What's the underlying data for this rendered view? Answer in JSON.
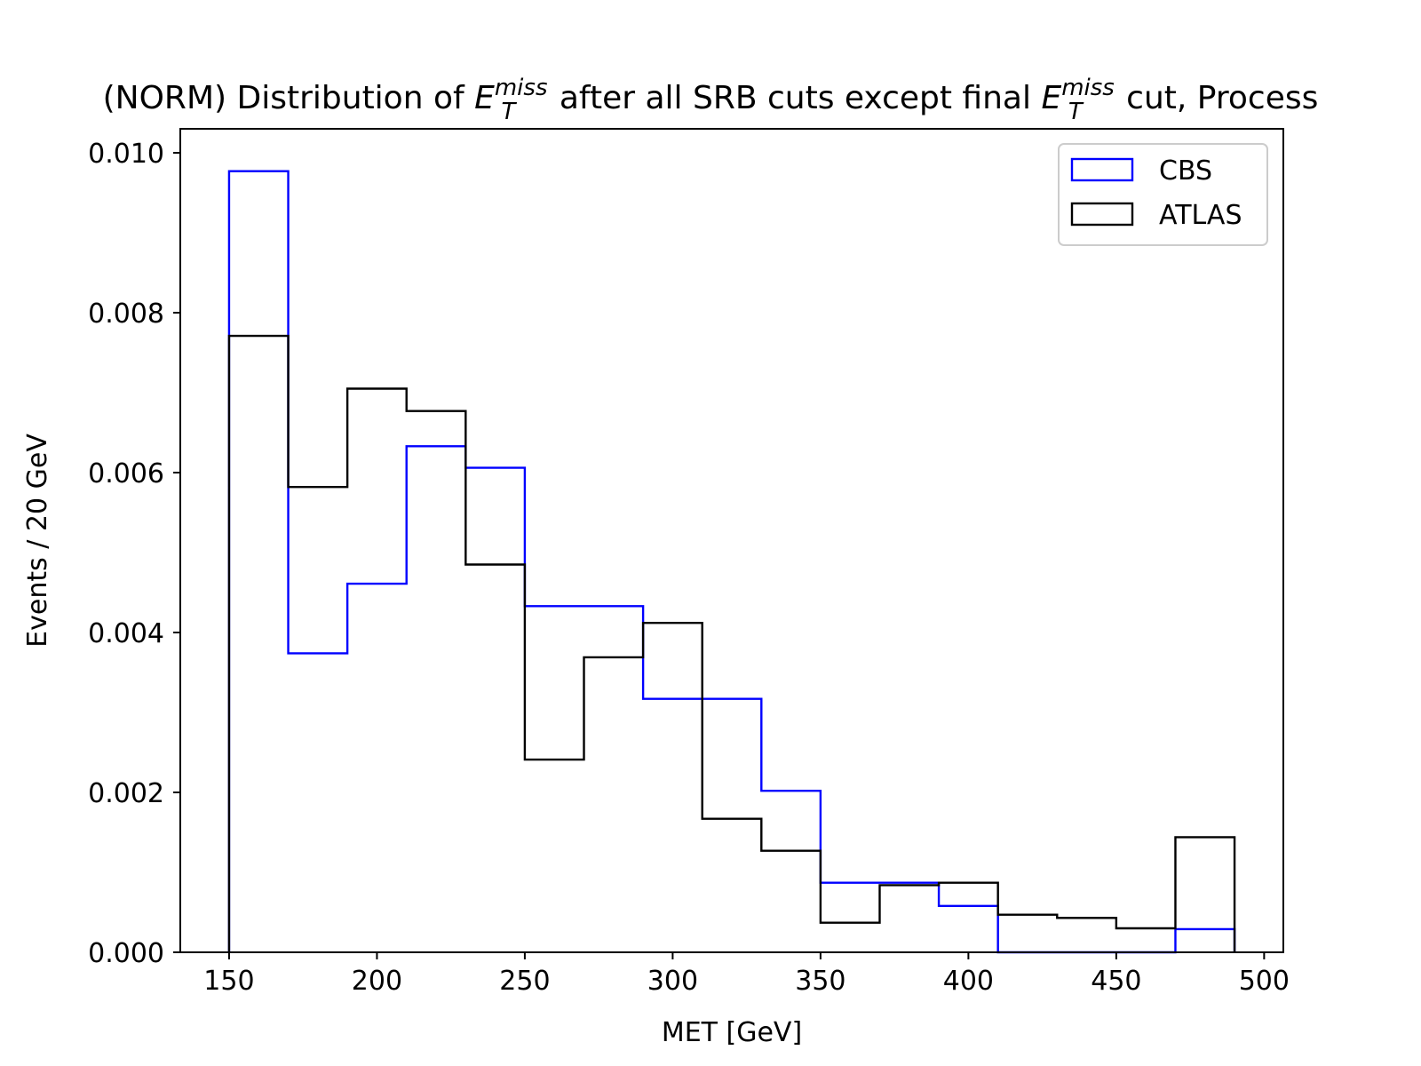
{
  "chart_data": {
    "type": "histogram",
    "title": {
      "prefix": "(NORM) Distribution of ",
      "symbol_base": "E",
      "symbol_sub": "T",
      "symbol_sup": "miss",
      "middle": " after all SRB cuts except final ",
      "suffix": " cut, Process"
    },
    "xlabel": "MET [GeV]",
    "ylabel": "Events / 20 GeV",
    "xlim": [
      133.5,
      506.5
    ],
    "ylim": [
      0,
      0.0103
    ],
    "xticks": [
      150,
      200,
      250,
      300,
      350,
      400,
      450,
      500
    ],
    "xtick_labels": [
      "150",
      "200",
      "250",
      "300",
      "350",
      "400",
      "450",
      "500"
    ],
    "yticks": [
      0,
      0.002,
      0.004,
      0.006,
      0.008,
      0.01
    ],
    "ytick_labels": [
      "0.000",
      "0.002",
      "0.004",
      "0.006",
      "0.008",
      "0.010"
    ],
    "bin_edges": [
      150,
      170,
      190,
      210,
      230,
      250,
      270,
      290,
      310,
      330,
      350,
      370,
      390,
      410,
      430,
      450,
      470,
      490
    ],
    "series": [
      {
        "name": "CBS",
        "color": "#0000ff",
        "values": [
          0.00977,
          0.00374,
          0.00461,
          0.00633,
          0.00606,
          0.00433,
          0.00433,
          0.00317,
          0.00317,
          0.00202,
          0.00087,
          0.00087,
          0.00058,
          0.0,
          0.0,
          0.0,
          0.00029
        ]
      },
      {
        "name": "ATLAS",
        "color": "#000000",
        "values": [
          0.00771,
          0.00582,
          0.00705,
          0.00677,
          0.00485,
          0.00241,
          0.00369,
          0.00412,
          0.00167,
          0.00127,
          0.00037,
          0.00084,
          0.00087,
          0.00047,
          0.00043,
          0.0003,
          0.00144
        ]
      }
    ],
    "legend_position": "upper-right",
    "grid": false
  }
}
